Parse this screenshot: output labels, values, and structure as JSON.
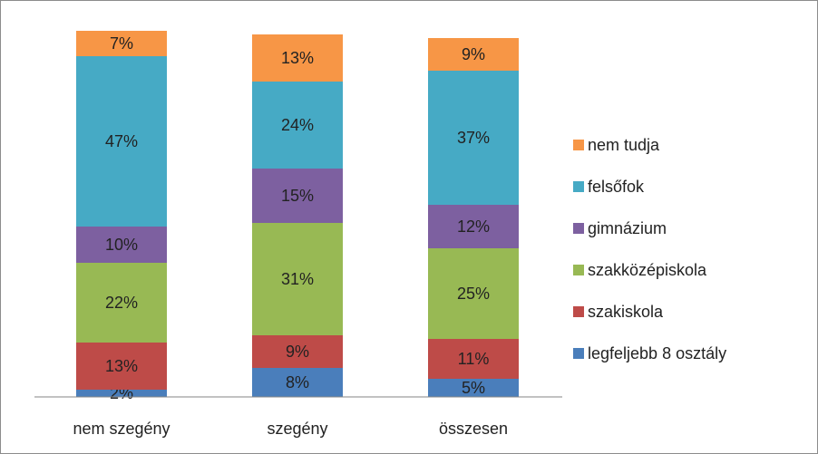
{
  "chart_data": {
    "type": "stacked_bar",
    "categories": [
      "nem szegény",
      "szegény",
      "összesen"
    ],
    "series": [
      {
        "name": "legfeljebb 8 osztály",
        "color": "#4a7ebb",
        "values": [
          2,
          8,
          5
        ],
        "value_labels": [
          "2%",
          "8%",
          "5%"
        ]
      },
      {
        "name": "szakiskola",
        "color": "#be4b48",
        "values": [
          13,
          9,
          11
        ],
        "value_labels": [
          "13%",
          "9%",
          "11%"
        ]
      },
      {
        "name": "szakközépiskola",
        "color": "#98b954",
        "values": [
          22,
          31,
          25
        ],
        "value_labels": [
          "22%",
          "31%",
          "25%"
        ]
      },
      {
        "name": "gimnázium",
        "color": "#7d60a0",
        "values": [
          10,
          15,
          12
        ],
        "value_labels": [
          "10%",
          "15%",
          "12%"
        ]
      },
      {
        "name": "felsőfok",
        "color": "#46aac5",
        "values": [
          47,
          24,
          37
        ],
        "value_labels": [
          "47%",
          "24%",
          "37%"
        ]
      },
      {
        "name": "nem tudja",
        "color": "#f79646",
        "values": [
          7,
          13,
          9
        ],
        "value_labels": [
          "7%",
          "13%",
          "9%"
        ]
      }
    ],
    "legend": "right"
  }
}
